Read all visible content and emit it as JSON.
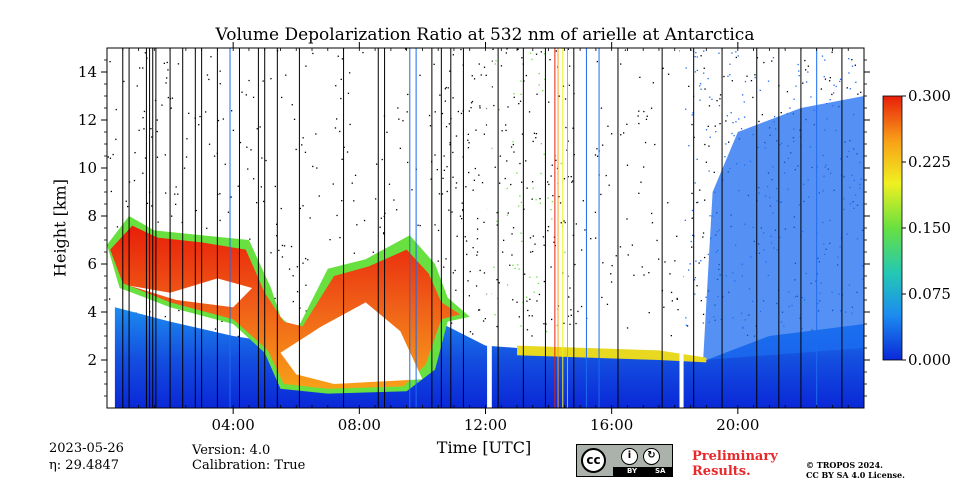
{
  "chart_data": {
    "type": "heatmap",
    "title": "Volume Depolarization Ratio at 532 nm of arielle at Antarctica",
    "xlabel": "Time [UTC]",
    "ylabel": "Height [km]",
    "x_range_hours": [
      0,
      24
    ],
    "xlim": [
      "00:00",
      "24:00"
    ],
    "ylim_km": [
      0,
      15
    ],
    "x_ticks": [
      {
        "hour": 4,
        "label": "04:00"
      },
      {
        "hour": 8,
        "label": "08:00"
      },
      {
        "hour": 12,
        "label": "12:00"
      },
      {
        "hour": 16,
        "label": "16:00"
      },
      {
        "hour": 20,
        "label": "20:00"
      }
    ],
    "y_ticks": [
      {
        "value": 2,
        "label": "2"
      },
      {
        "value": 4,
        "label": "4"
      },
      {
        "value": 6,
        "label": "6"
      },
      {
        "value": 8,
        "label": "8"
      },
      {
        "value": 10,
        "label": "10"
      },
      {
        "value": 12,
        "label": "12"
      },
      {
        "value": 14,
        "label": "14"
      }
    ],
    "colorbar": {
      "min": 0.0,
      "max": 0.3,
      "ticks": [
        {
          "value": 0.0,
          "label": "0.000"
        },
        {
          "value": 0.075,
          "label": "0.075"
        },
        {
          "value": 0.15,
          "label": "0.150"
        },
        {
          "value": 0.225,
          "label": "0.225"
        },
        {
          "value": 0.3,
          "label": "0.300"
        }
      ],
      "colors": [
        "#0a28d8",
        "#1c8cf0",
        "#24c8b4",
        "#68e040",
        "#f0f020",
        "#f8a018",
        "#e81e0a"
      ]
    },
    "grid": false,
    "gaps_hours": [
      [
        12.05,
        12.2
      ],
      [
        18.15,
        18.28
      ]
    ],
    "features": [
      {
        "name": "boundary layer",
        "t_start": 0.25,
        "t_end": 24.0,
        "height_km": [
          0,
          4.2
        ],
        "value_approx": 0.02
      },
      {
        "name": "cloud",
        "t_start": 0.0,
        "t_end": 11.5,
        "height_km": [
          1.0,
          8.0
        ],
        "value_approx": 0.22
      },
      {
        "name": "layer",
        "t_start": 13.0,
        "t_end": 19.0,
        "height_km": [
          2.0,
          2.6
        ],
        "value_approx": 0.15
      },
      {
        "name": "high-altitude signal",
        "t_start": 18.3,
        "t_end": 24.0,
        "height_km": [
          1.0,
          14.0
        ],
        "value_approx": 0.03
      }
    ]
  },
  "footer": {
    "date": "2023-05-26",
    "eta": "η: 29.4847",
    "version": "Version: 4.0",
    "calibration": "Calibration: True",
    "license_badge": {
      "cc": "cc",
      "by": "BY",
      "sa": "SA"
    },
    "preliminary": [
      "Preliminary",
      "Results."
    ],
    "copyright": [
      "© TROPOS 2024.",
      "CC BY SA 4.0 License."
    ]
  }
}
